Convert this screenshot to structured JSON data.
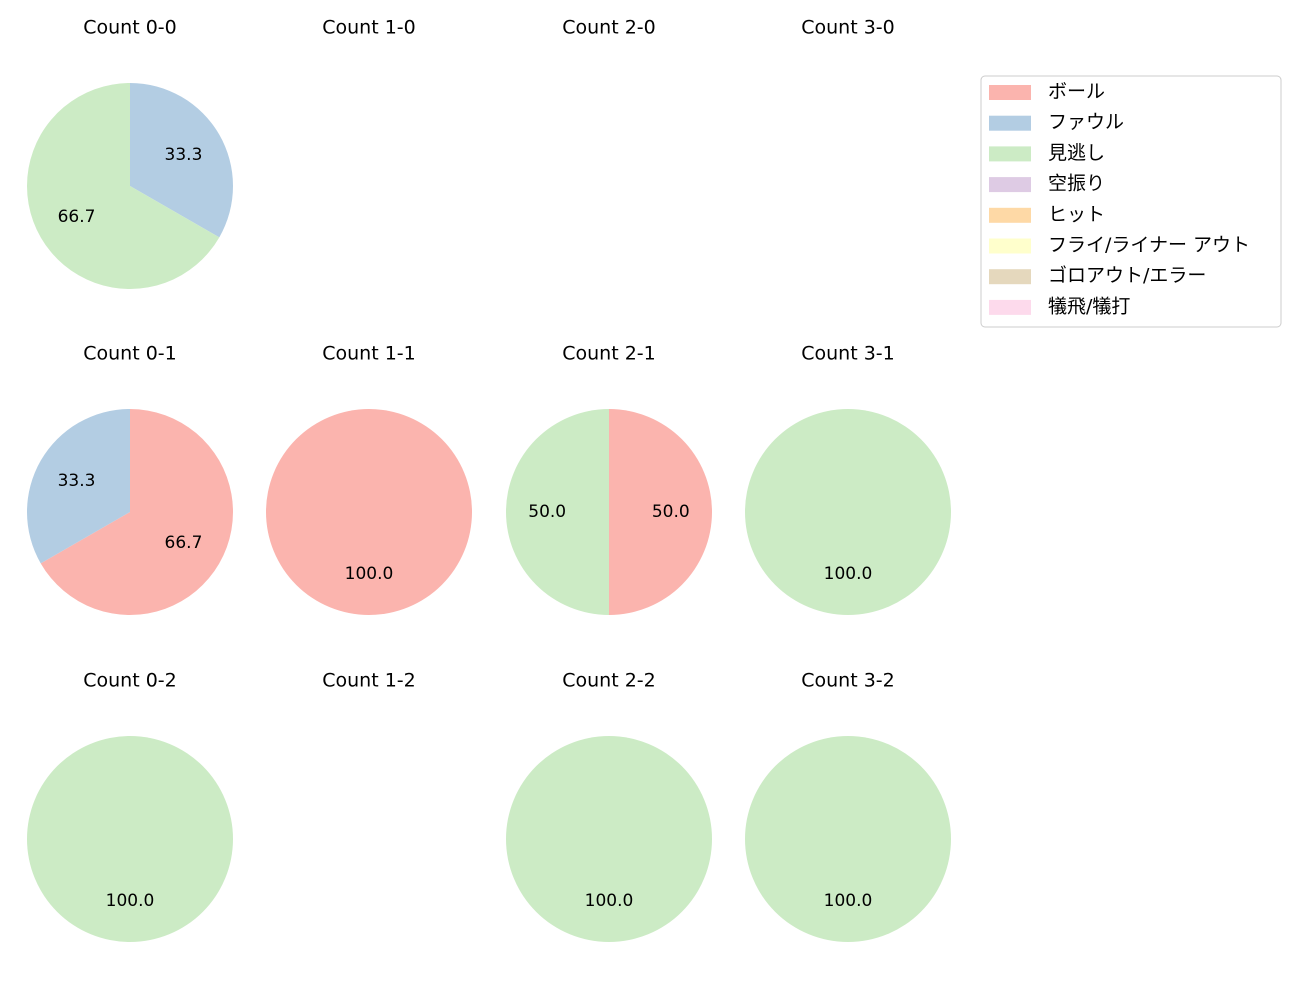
{
  "chart_data": [
    {
      "type": "pie",
      "title": "Count 0-0",
      "categories": [
        "ファウル",
        "見逃し"
      ],
      "values": [
        33.3,
        66.7
      ],
      "value_labels": [
        "33.3",
        "66.7"
      ],
      "colors": [
        "#b3cde3",
        "#ccebc5"
      ]
    },
    {
      "type": "pie",
      "title": "Count 1-0",
      "categories": [],
      "values": [],
      "value_labels": [],
      "colors": []
    },
    {
      "type": "pie",
      "title": "Count 2-0",
      "categories": [],
      "values": [],
      "value_labels": [],
      "colors": []
    },
    {
      "type": "pie",
      "title": "Count 3-0",
      "categories": [],
      "values": [],
      "value_labels": [],
      "colors": []
    },
    {
      "type": "pie",
      "title": "Count 0-1",
      "categories": [
        "ボール",
        "ファウル"
      ],
      "values": [
        66.7,
        33.3
      ],
      "value_labels": [
        "66.7",
        "33.3"
      ],
      "colors": [
        "#fbb4ae",
        "#b3cde3"
      ]
    },
    {
      "type": "pie",
      "title": "Count 1-1",
      "categories": [
        "ボール"
      ],
      "values": [
        100
      ],
      "value_labels": [
        "100.0"
      ],
      "colors": [
        "#fbb4ae"
      ]
    },
    {
      "type": "pie",
      "title": "Count 2-1",
      "categories": [
        "ボール",
        "見逃し"
      ],
      "values": [
        50,
        50
      ],
      "value_labels": [
        "50.0",
        "50.0"
      ],
      "colors": [
        "#fbb4ae",
        "#ccebc5"
      ]
    },
    {
      "type": "pie",
      "title": "Count 3-1",
      "categories": [
        "見逃し"
      ],
      "values": [
        100
      ],
      "value_labels": [
        "100.0"
      ],
      "colors": [
        "#ccebc5"
      ]
    },
    {
      "type": "pie",
      "title": "Count 0-2",
      "categories": [
        "見逃し"
      ],
      "values": [
        100
      ],
      "value_labels": [
        "100.0"
      ],
      "colors": [
        "#ccebc5"
      ]
    },
    {
      "type": "pie",
      "title": "Count 1-2",
      "categories": [],
      "values": [],
      "value_labels": [],
      "colors": []
    },
    {
      "type": "pie",
      "title": "Count 2-2",
      "categories": [
        "見逃し"
      ],
      "values": [
        100
      ],
      "value_labels": [
        "100.0"
      ],
      "colors": [
        "#ccebc5"
      ]
    },
    {
      "type": "pie",
      "title": "Count 3-2",
      "categories": [
        "見逃し"
      ],
      "values": [
        100
      ],
      "value_labels": [
        "100.0"
      ],
      "colors": [
        "#ccebc5"
      ]
    }
  ],
  "legend": {
    "items": [
      {
        "name": "ボール",
        "color": "#fbb4ae"
      },
      {
        "name": "ファウル",
        "color": "#b3cde3"
      },
      {
        "name": "見逃し",
        "color": "#ccebc5"
      },
      {
        "name": "空振り",
        "color": "#decbe4"
      },
      {
        "name": "ヒット",
        "color": "#fed9a6"
      },
      {
        "name": "フライ/ライナー アウト",
        "color": "#ffffcc"
      },
      {
        "name": "ゴロアウト/エラー",
        "color": "#e5d8bd"
      },
      {
        "name": "犠飛/犠打",
        "color": "#fddaec"
      }
    ]
  }
}
